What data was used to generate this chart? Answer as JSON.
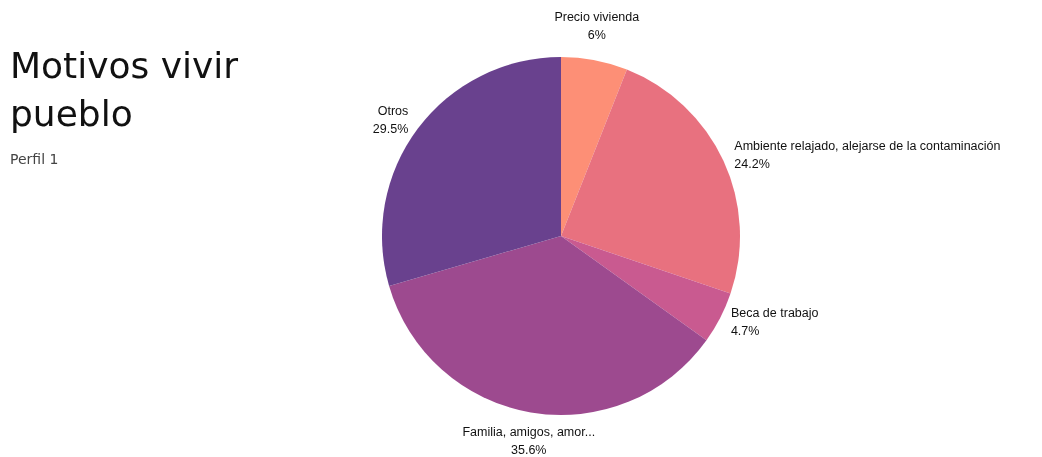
{
  "chart_data": {
    "type": "pie",
    "title": "Motivos vivir pueblo",
    "subtitle": "Perfil 1",
    "categories": [
      "Precio vivienda",
      "Ambiente relajado, alejarse de la contaminación",
      "Beca de trabajo",
      "Familia, amigos, amor...",
      "Otros"
    ],
    "values": [
      6,
      24.2,
      4.7,
      35.6,
      29.5
    ],
    "colors": [
      "#fd8f76",
      "#e8717f",
      "#c95a90",
      "#9d4a8f",
      "#69418e"
    ],
    "value_labels": [
      "6%",
      "24.2%",
      "4.7%",
      "35.6%",
      "29.5%"
    ]
  }
}
